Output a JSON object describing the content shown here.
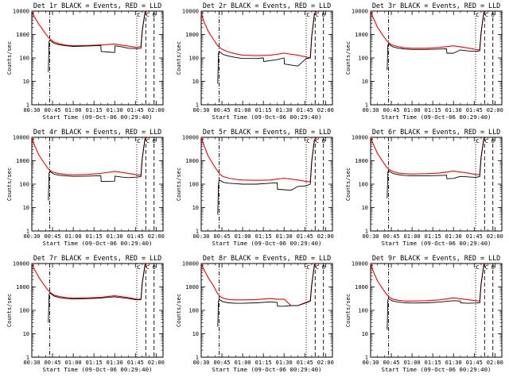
{
  "figure": {
    "ylabel": "Counts/sec",
    "xlabel": "Start Time (09-Oct-06 00:29:40)",
    "x_ticks": [
      "00:30",
      "00:45",
      "01:00",
      "01:15",
      "01:30",
      "01:45",
      "02:00"
    ],
    "y_ticks": [
      "1",
      "10",
      "100",
      "1000",
      "10000"
    ],
    "marker_letters": [
      "C",
      "C",
      "C",
      "O"
    ]
  },
  "chart_data": [
    {
      "type": "line",
      "title": "Det 1r BLACK = Events, RED = LLD",
      "xlabel": "Start Time (09-Oct-06 00:29:40)",
      "ylabel": "Counts/sec",
      "y_scale": "log",
      "ylim": [
        1,
        10000
      ],
      "xlim_minutes": [
        0,
        95
      ],
      "x_ticks": [
        "00:30",
        "00:45",
        "01:00",
        "01:15",
        "01:30",
        "01:45",
        "02:00"
      ],
      "y_ticks": [
        "1",
        "10",
        "100",
        "1000",
        "10000"
      ],
      "series": [
        {
          "color": "#ff0000",
          "x": [
            0,
            2,
            5,
            9,
            12,
            14,
            16,
            20,
            25,
            30,
            40,
            50,
            60,
            70,
            76,
            79,
            80,
            82,
            84
          ],
          "y": [
            10000,
            5500,
            2800,
            1300,
            750,
            600,
            480,
            400,
            350,
            330,
            340,
            360,
            390,
            320,
            280,
            310,
            1500,
            9000,
            10000
          ]
        },
        {
          "color": "#000000",
          "x": [
            12,
            12.5,
            13,
            14,
            16,
            20,
            25,
            30,
            40,
            50,
            50.2,
            55,
            60,
            60.2,
            65,
            70,
            76,
            79,
            80,
            82
          ],
          "y": [
            25,
            500,
            580,
            520,
            420,
            360,
            330,
            310,
            320,
            340,
            190,
            180,
            170,
            330,
            300,
            260,
            250,
            260,
            1500,
            9000
          ]
        }
      ]
    },
    {
      "type": "line",
      "title": "Det 2r BLACK = Events, RED = LLD",
      "xlabel": "Start Time (09-Oct-06 00:29:40)",
      "ylabel": "Counts/sec",
      "y_scale": "log",
      "ylim": [
        1,
        10000
      ],
      "xlim_minutes": [
        0,
        95
      ],
      "x_ticks": [
        "00:30",
        "00:45",
        "01:00",
        "01:15",
        "01:30",
        "01:45",
        "02:00"
      ],
      "y_ticks": [
        "1",
        "10",
        "100",
        "1000",
        "10000"
      ],
      "series": [
        {
          "color": "#ff0000",
          "x": [
            0,
            2,
            5,
            9,
            12,
            14,
            16,
            20,
            25,
            30,
            40,
            50,
            60,
            70,
            76,
            79,
            80,
            82,
            84
          ],
          "y": [
            8000,
            3500,
            1400,
            600,
            330,
            260,
            220,
            180,
            150,
            130,
            125,
            130,
            160,
            130,
            110,
            100,
            800,
            8000,
            10000
          ]
        },
        {
          "color": "#000000",
          "x": [
            12,
            12.5,
            13,
            14,
            16,
            20,
            25,
            30,
            40,
            45,
            45.2,
            55,
            60,
            60.2,
            65,
            70,
            76,
            79,
            80,
            82
          ],
          "y": [
            8,
            150,
            190,
            170,
            140,
            120,
            105,
            95,
            95,
            100,
            70,
            85,
            100,
            55,
            50,
            45,
            95,
            100,
            800,
            8000
          ]
        }
      ]
    },
    {
      "type": "line",
      "title": "Det 3r BLACK = Events, RED = LLD",
      "xlabel": "Start Time (09-Oct-06 00:29:40)",
      "ylabel": "Counts/sec",
      "y_scale": "log",
      "ylim": [
        1,
        10000
      ],
      "xlim_minutes": [
        0,
        95
      ],
      "x_ticks": [
        "00:30",
        "00:45",
        "01:00",
        "01:15",
        "01:30",
        "01:45",
        "02:00"
      ],
      "y_ticks": [
        "1",
        "10",
        "100",
        "1000",
        "10000"
      ],
      "series": [
        {
          "color": "#ff0000",
          "x": [
            0,
            2,
            5,
            9,
            12,
            14,
            16,
            20,
            25,
            30,
            40,
            50,
            60,
            70,
            76,
            79,
            80,
            82,
            84
          ],
          "y": [
            10000,
            5000,
            2000,
            900,
            520,
            400,
            350,
            300,
            270,
            260,
            260,
            280,
            330,
            270,
            230,
            220,
            1200,
            9000,
            10000
          ]
        },
        {
          "color": "#000000",
          "x": [
            12,
            12.5,
            13,
            14,
            16,
            20,
            25,
            30,
            40,
            50,
            55,
            55.2,
            60,
            65,
            70,
            76,
            79,
            80,
            82
          ],
          "y": [
            30,
            350,
            400,
            360,
            300,
            260,
            240,
            230,
            230,
            240,
            245,
            160,
            160,
            220,
            200,
            190,
            200,
            1200,
            9000
          ]
        }
      ]
    },
    {
      "type": "line",
      "title": "Det 4r BLACK = Events, RED = LLD",
      "xlabel": "Start Time (09-Oct-06 00:29:40)",
      "ylabel": "Counts/sec",
      "y_scale": "log",
      "ylim": [
        1,
        10000
      ],
      "xlim_minutes": [
        0,
        95
      ],
      "x_ticks": [
        "00:30",
        "00:45",
        "01:00",
        "01:15",
        "01:30",
        "01:45",
        "02:00"
      ],
      "y_ticks": [
        "1",
        "10",
        "100",
        "1000",
        "10000"
      ],
      "series": [
        {
          "color": "#ff0000",
          "x": [
            0,
            2,
            5,
            9,
            12,
            14,
            16,
            20,
            25,
            30,
            40,
            50,
            60,
            70,
            76,
            79,
            80,
            82,
            84
          ],
          "y": [
            10000,
            4500,
            1800,
            800,
            450,
            350,
            320,
            280,
            260,
            250,
            260,
            290,
            350,
            290,
            250,
            240,
            1300,
            9000,
            10000
          ]
        },
        {
          "color": "#000000",
          "x": [
            12,
            12.5,
            13,
            14,
            16,
            20,
            25,
            30,
            40,
            50,
            50.2,
            55,
            60,
            60.2,
            65,
            70,
            76,
            79,
            80,
            82
          ],
          "y": [
            20,
            300,
            350,
            320,
            270,
            240,
            225,
            215,
            220,
            230,
            130,
            130,
            135,
            220,
            200,
            190,
            200,
            210,
            1300,
            9000
          ]
        }
      ]
    },
    {
      "type": "line",
      "title": "Det 5r BLACK = Events, RED = LLD",
      "xlabel": "Start Time (09-Oct-06 00:29:40)",
      "ylabel": "Counts/sec",
      "y_scale": "log",
      "ylim": [
        1,
        10000
      ],
      "xlim_minutes": [
        0,
        95
      ],
      "x_ticks": [
        "00:30",
        "00:45",
        "01:00",
        "01:15",
        "01:30",
        "01:45",
        "02:00"
      ],
      "y_ticks": [
        "1",
        "10",
        "100",
        "1000",
        "10000"
      ],
      "series": [
        {
          "color": "#ff0000",
          "x": [
            0,
            2,
            5,
            9,
            12,
            14,
            16,
            20,
            25,
            30,
            40,
            50,
            60,
            70,
            76,
            79,
            80,
            82,
            84
          ],
          "y": [
            10000,
            4500,
            1600,
            650,
            350,
            250,
            210,
            180,
            160,
            150,
            145,
            150,
            180,
            150,
            130,
            125,
            900,
            8000,
            10000
          ]
        },
        {
          "color": "#000000",
          "x": [
            12,
            12.5,
            13,
            14,
            16,
            20,
            25,
            30,
            40,
            50,
            55,
            55.2,
            60,
            65,
            70,
            76,
            79,
            80,
            82
          ],
          "y": [
            5,
            100,
            150,
            140,
            120,
            110,
            105,
            100,
            100,
            110,
            115,
            60,
            58,
            55,
            80,
            85,
            100,
            900,
            8000
          ]
        }
      ]
    },
    {
      "type": "line",
      "title": "Det 6r BLACK = Events, RED = LLD",
      "xlabel": "Start Time (09-Oct-06 00:29:40)",
      "ylabel": "Counts/sec",
      "y_scale": "log",
      "ylim": [
        1,
        10000
      ],
      "xlim_minutes": [
        0,
        95
      ],
      "x_ticks": [
        "00:30",
        "00:45",
        "01:00",
        "01:15",
        "01:30",
        "01:45",
        "02:00"
      ],
      "y_ticks": [
        "1",
        "10",
        "100",
        "1000",
        "10000"
      ],
      "series": [
        {
          "color": "#ff0000",
          "x": [
            0,
            2,
            5,
            9,
            12,
            14,
            16,
            20,
            25,
            30,
            40,
            50,
            60,
            70,
            76,
            79,
            80,
            82,
            84
          ],
          "y": [
            10000,
            5000,
            2000,
            900,
            500,
            400,
            350,
            300,
            280,
            270,
            280,
            300,
            360,
            300,
            260,
            250,
            1400,
            9000,
            10000
          ]
        },
        {
          "color": "#000000",
          "x": [
            12,
            12.5,
            13,
            14,
            16,
            20,
            25,
            30,
            40,
            50,
            55,
            55.2,
            60,
            65,
            70,
            76,
            79,
            80,
            82
          ],
          "y": [
            25,
            330,
            380,
            340,
            290,
            255,
            235,
            225,
            225,
            235,
            240,
            170,
            175,
            215,
            205,
            195,
            210,
            1400,
            9000
          ]
        }
      ]
    },
    {
      "type": "line",
      "title": "Det 7r BLACK = Events, RED = LLD",
      "xlabel": "Start Time (09-Oct-06 00:29:40)",
      "ylabel": "Counts/sec",
      "y_scale": "log",
      "ylim": [
        1,
        10000
      ],
      "xlim_minutes": [
        0,
        95
      ],
      "x_ticks": [
        "00:30",
        "00:45",
        "01:00",
        "01:15",
        "01:30",
        "01:45",
        "02:00"
      ],
      "y_ticks": [
        "1",
        "10",
        "100",
        "1000",
        "10000"
      ],
      "series": [
        {
          "color": "#ff0000",
          "x": [
            0,
            2,
            5,
            9,
            12,
            14,
            16,
            20,
            25,
            30,
            40,
            50,
            60,
            70,
            76,
            79,
            80,
            82,
            84
          ],
          "y": [
            10000,
            5500,
            2600,
            1200,
            700,
            550,
            450,
            390,
            350,
            330,
            340,
            360,
            420,
            350,
            300,
            300,
            1500,
            9000,
            10000
          ]
        },
        {
          "color": "#000000",
          "x": [
            12,
            12.5,
            13,
            14,
            16,
            20,
            25,
            30,
            40,
            50,
            60,
            70,
            76,
            79,
            80,
            82
          ],
          "y": [
            30,
            480,
            560,
            500,
            410,
            350,
            320,
            305,
            315,
            335,
            380,
            320,
            280,
            290,
            1500,
            9000
          ]
        }
      ]
    },
    {
      "type": "line",
      "title": "Det 8r BLACK = Events, RED = LLD",
      "xlabel": "Start Time (09-Oct-06 00:29:40)",
      "ylabel": "Counts/sec",
      "y_scale": "log",
      "ylim": [
        1,
        10000
      ],
      "xlim_minutes": [
        0,
        95
      ],
      "x_ticks": [
        "00:30",
        "00:45",
        "01:00",
        "01:15",
        "01:30",
        "01:45",
        "02:00"
      ],
      "y_ticks": [
        "1",
        "10",
        "100",
        "1000",
        "10000"
      ],
      "series": [
        {
          "color": "#ff0000",
          "x": [
            0,
            2,
            5,
            9,
            12,
            14,
            16,
            20,
            25,
            30,
            40,
            50,
            55,
            60,
            65,
            70,
            76,
            79,
            80,
            82,
            84
          ],
          "y": [
            10000,
            5500,
            2500,
            1100,
            500,
            380,
            330,
            290,
            280,
            280,
            290,
            320,
            300,
            300,
            160,
            160,
            220,
            260,
            1200,
            9000,
            10000
          ]
        },
        {
          "color": "#000000",
          "x": [
            12,
            12.5,
            13,
            14,
            16,
            20,
            25,
            30,
            40,
            50,
            55,
            55.2,
            60,
            65,
            70,
            76,
            79,
            80,
            82
          ],
          "y": [
            20,
            250,
            300,
            270,
            230,
            210,
            200,
            200,
            210,
            230,
            220,
            150,
            150,
            160,
            160,
            210,
            250,
            1200,
            9000
          ]
        }
      ]
    },
    {
      "type": "line",
      "title": "Det 9r BLACK = Events, RED = LLD",
      "xlabel": "Start Time (09-Oct-06 00:29:40)",
      "ylabel": "Counts/sec",
      "y_scale": "log",
      "ylim": [
        1,
        10000
      ],
      "xlim_minutes": [
        0,
        95
      ],
      "x_ticks": [
        "00:30",
        "00:45",
        "01:00",
        "01:15",
        "01:30",
        "01:45",
        "02:00"
      ],
      "y_ticks": [
        "1",
        "10",
        "100",
        "1000",
        "10000"
      ],
      "series": [
        {
          "color": "#ff0000",
          "x": [
            0,
            2,
            5,
            9,
            12,
            14,
            16,
            20,
            25,
            30,
            40,
            50,
            60,
            70,
            76,
            79,
            80,
            82,
            84
          ],
          "y": [
            10000,
            4500,
            1800,
            800,
            450,
            350,
            300,
            270,
            250,
            250,
            260,
            280,
            340,
            290,
            260,
            250,
            1300,
            9000,
            10000
          ]
        },
        {
          "color": "#000000",
          "x": [
            12,
            12.5,
            13,
            14,
            16,
            20,
            25,
            30,
            40,
            50,
            60,
            65,
            65.2,
            70,
            76,
            79,
            80,
            82
          ],
          "y": [
            15,
            280,
            320,
            290,
            250,
            225,
            210,
            205,
            210,
            225,
            260,
            250,
            210,
            200,
            205,
            210,
            1300,
            9000
          ]
        }
      ]
    }
  ]
}
